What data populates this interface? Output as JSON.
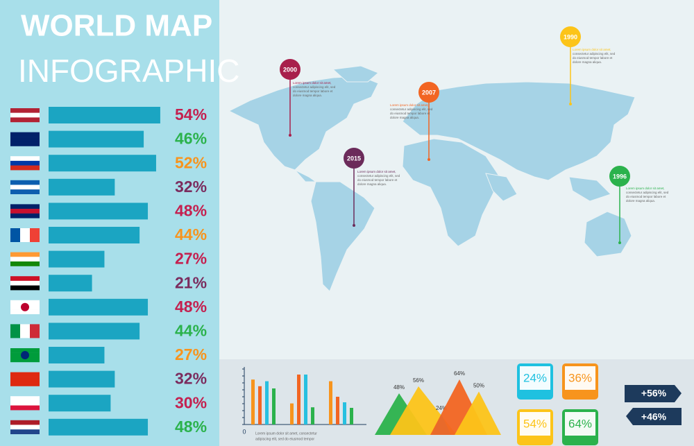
{
  "header": {
    "title": "WORLD MAP",
    "subtitle": "INFOGRAPHIC"
  },
  "chart_data": [
    {
      "type": "hbar",
      "categories": [
        null,
        null,
        null,
        null,
        null,
        null,
        null,
        null,
        null,
        null,
        null,
        null,
        null,
        null
      ],
      "values": [
        54,
        46,
        52,
        32,
        48,
        44,
        27,
        21,
        48,
        44,
        27,
        32,
        30,
        48
      ],
      "value_labels": [
        "54%",
        "46%",
        "52%",
        "32%",
        "48%",
        "44%",
        "27%",
        "21%",
        "48%",
        "44%",
        "27%",
        "32%",
        "30%",
        "48%"
      ],
      "color": "#1ba5c2",
      "label_colors": [
        "#c4204f",
        "#2bb24c",
        "#f7941d",
        "#7b2c5e",
        "#c4204f",
        "#f7941d",
        "#c4204f",
        "#7b2c5e",
        "#c4204f",
        "#2bb24c",
        "#f7941d",
        "#7b2c5e",
        "#c4204f",
        "#2bb24c"
      ]
    },
    {
      "type": "column",
      "categories": [
        null,
        null,
        null
      ],
      "ylim": [
        0,
        10
      ],
      "yticks": [
        0
      ],
      "series": [
        {
          "color": "#f7941d",
          "values": [
            8.1,
            3.8,
            7.8
          ]
        },
        {
          "color": "#f26522",
          "values": [
            6.9,
            9,
            5
          ]
        },
        {
          "color": "#27c0e0",
          "values": [
            7.8,
            9,
            4
          ]
        },
        {
          "color": "#2bb24c",
          "values": [
            6.5,
            3.1,
            3
          ]
        }
      ],
      "caption": [
        "Lorem ipsum dolor sit amet, consectetur",
        "adipiscing elit, sed do eiusmod tempor"
      ]
    },
    {
      "type": "triangle",
      "values": [
        48,
        56,
        24,
        64,
        50
      ],
      "value_labels": [
        "48%",
        "56%",
        "24%",
        "64%",
        "50%"
      ],
      "colors": [
        "#2bb24c",
        "#fcc419",
        "#27c0e0",
        "#f26522",
        "#fcc419"
      ]
    },
    {
      "type": "tiles",
      "values": [
        24,
        36,
        54,
        64
      ],
      "value_labels": [
        "24%",
        "36%",
        "54%",
        "64%"
      ],
      "colors": [
        "#1fc1e0",
        "#f7941d",
        "#fcc419",
        "#2bb24c"
      ]
    },
    {
      "type": "arrows",
      "values": [
        56,
        46
      ],
      "value_labels": [
        "+56%",
        "+46%"
      ],
      "color": "#1d3a5c"
    }
  ],
  "map": {
    "pins": [
      {
        "year": "1990",
        "color": "#fcc419",
        "text": [
          "Lorem ipsum dolor sit amet,",
          "consectetur adipiscing elit, sed",
          "do eiusmod tempor labore et",
          "dolore magna aliqua."
        ]
      },
      {
        "year": "2000",
        "color": "#a8204c",
        "text": [
          "Lorem ipsum dolor sit amet,",
          "consectetur adipiscing elit, sed",
          "do eiusmod tempor labore et",
          "dolore magna aliqua."
        ]
      },
      {
        "year": "2007",
        "color": "#f26522",
        "text": [
          "Lorem ipsum dolor sit amet,",
          "consectetur adipiscing elit, sed",
          "do eiusmod tempor labore et",
          "dolore magna aliqua."
        ]
      },
      {
        "year": "2015",
        "color": "#6b2b5a",
        "text": [
          "Lorem ipsum dolor sit amet,",
          "consectetur adipiscing elit, sed",
          "do eiusmod tempor labore et",
          "dolore magna aliqua."
        ]
      },
      {
        "year": "1996",
        "color": "#2bb24c",
        "text": [
          "Lorem ipsum dolor sit amet,",
          "consectetur adipiscing elit, sed",
          "do eiusmod tempor labore et",
          "dolore magna aliqua."
        ]
      }
    ]
  }
}
